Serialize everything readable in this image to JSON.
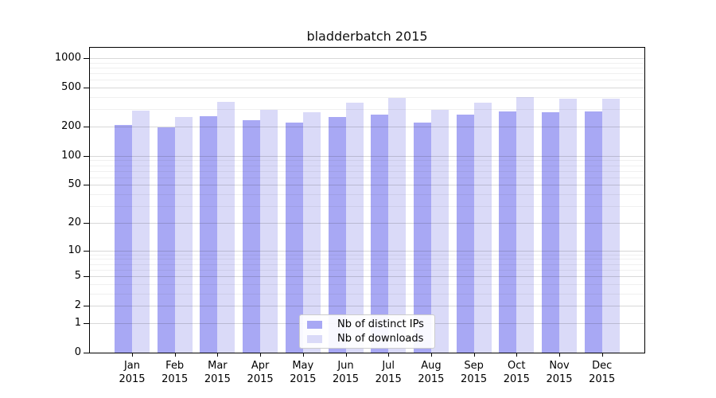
{
  "chart_data": {
    "type": "bar",
    "title": "bladderbatch 2015",
    "categories": [
      "Jan 2015",
      "Feb 2015",
      "Mar 2015",
      "Apr 2015",
      "May 2015",
      "Jun 2015",
      "Jul 2015",
      "Aug 2015",
      "Sep 2015",
      "Oct 2015",
      "Nov 2015",
      "Dec 2015"
    ],
    "series": [
      {
        "name": "Nb of distinct IPs",
        "color": "#a8a8f4",
        "values": [
          206,
          196,
          254,
          234,
          220,
          249,
          263,
          218,
          265,
          287,
          282,
          287
        ]
      },
      {
        "name": "Nb of downloads",
        "color": "#dadaf8",
        "values": [
          291,
          252,
          358,
          297,
          282,
          351,
          390,
          295,
          353,
          400,
          388,
          388
        ]
      }
    ],
    "xlabel": "",
    "ylabel": "",
    "yscale": "log1p",
    "ylim": [
      0,
      1270
    ],
    "yticks": [
      0,
      1,
      2,
      5,
      10,
      20,
      50,
      100,
      200,
      500,
      1000
    ],
    "minor_gridlines": [
      3,
      4,
      6,
      7,
      8,
      9,
      30,
      40,
      60,
      70,
      80,
      90,
      300,
      400,
      600,
      700,
      800,
      900
    ],
    "grid": "on",
    "legend_position": "lower center (inside plot)"
  },
  "colors": {
    "axis": "#000000",
    "grid_major": "#d8d8d8",
    "grid_minor": "#efefef",
    "legend_border": "#cccccc",
    "background": "#ffffff"
  }
}
